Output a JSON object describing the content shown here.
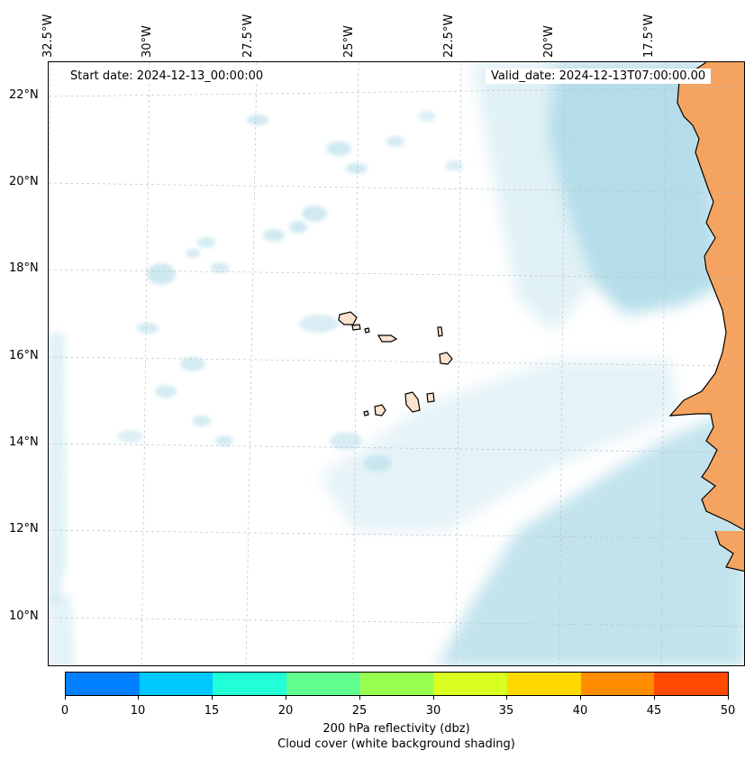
{
  "map": {
    "start_date_label": "Start date: 2024-12-13_00:00:00",
    "valid_date_label": "Valid_date: 2024-12-13T07:00:00.00",
    "longitude_labels": [
      "32.5°W",
      "30°W",
      "27.5°W",
      "25°W",
      "22.5°W",
      "20°W",
      "17.5°W"
    ],
    "latitude_labels": [
      "22°N",
      "20°N",
      "18°N",
      "16°N",
      "14°N",
      "12°N",
      "10°N"
    ],
    "colors": {
      "cloud": "#a9d8e6",
      "land": "#f4a460",
      "coast": "#000000",
      "grid": "#bbbbbb"
    }
  },
  "colorbar": {
    "ticks": [
      "0",
      "10",
      "15",
      "20",
      "25",
      "30",
      "35",
      "40",
      "45",
      "50"
    ],
    "colors": [
      "#0080ff",
      "#00c8ff",
      "#20ffd8",
      "#60ff90",
      "#98ff50",
      "#d8ff20",
      "#ffd800",
      "#ff8c00",
      "#ff4a00"
    ],
    "label": "200 hPa reflectivity (dbz)",
    "sublabel": "Cloud cover (white background shading)"
  }
}
